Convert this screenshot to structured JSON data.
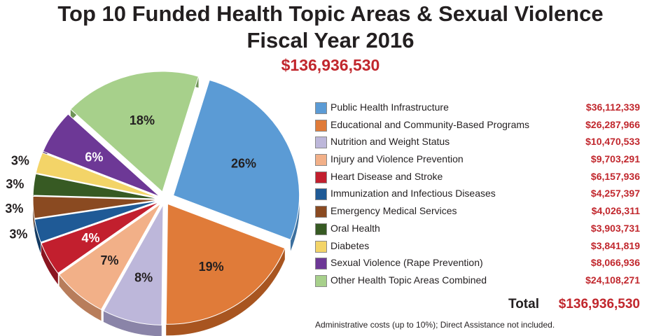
{
  "chart_data": {
    "type": "pie",
    "title": "Top 10 Funded Health Topic Areas & Sexual Violence",
    "subtitle": "Fiscal Year 2016",
    "total_amount": "$136,936,530",
    "slices": [
      {
        "name": "Public Health Infrastructure",
        "amount": "$36,112,339",
        "value": 36112339,
        "percent": "26%",
        "color": "#5b9bd5",
        "dark": "#3b6f9e"
      },
      {
        "name": "Educational and Community-Based Programs",
        "amount": "$26,287,966",
        "value": 26287966,
        "percent": "19%",
        "color": "#e07b39",
        "dark": "#a85520"
      },
      {
        "name": "Nutrition and Weight Status",
        "amount": "$10,470,533",
        "value": 10470533,
        "percent": "8%",
        "color": "#bdb7da",
        "dark": "#8a84a8"
      },
      {
        "name": "Injury and Violence Prevention",
        "amount": "$9,703,291",
        "value": 9703291,
        "percent": "7%",
        "color": "#f2b088",
        "dark": "#b87d5b"
      },
      {
        "name": "Heart Disease and Stroke",
        "amount": "$6,157,936",
        "value": 6157936,
        "percent": "4%",
        "color": "#c21f2e",
        "dark": "#8a1520"
      },
      {
        "name": "Immunization and Infectious Diseases",
        "amount": "$4,257,397",
        "value": 4257397,
        "percent": "3%",
        "color": "#1f5a96",
        "dark": "#143b63"
      },
      {
        "name": "Emergency Medical Services",
        "amount": "$4,026,311",
        "value": 4026311,
        "percent": "3%",
        "color": "#8a4a21",
        "dark": "#5c3114"
      },
      {
        "name": "Oral Health",
        "amount": "$3,903,731",
        "value": 3903731,
        "percent": "3%",
        "color": "#375a23",
        "dark": "#233b16"
      },
      {
        "name": "Diabetes",
        "amount": "$3,841,819",
        "value": 3841819,
        "percent": "3%",
        "color": "#f3d468",
        "dark": "#b59a3c"
      },
      {
        "name": "Sexual Violence (Rape Prevention)",
        "amount": "$8,066,936",
        "value": 8066936,
        "percent": "6%",
        "color": "#6d3896",
        "dark": "#4a2466"
      },
      {
        "name": "Other Health Topic Areas Combined",
        "amount": "$24,108,271",
        "value": 24108271,
        "percent": "18%",
        "color": "#a7d08b",
        "dark": "#6f9457"
      }
    ],
    "total_label": "Total",
    "total_value": "$136,936,530",
    "footnote": "Administrative costs (up to 10%); Direct Assistance not included."
  }
}
